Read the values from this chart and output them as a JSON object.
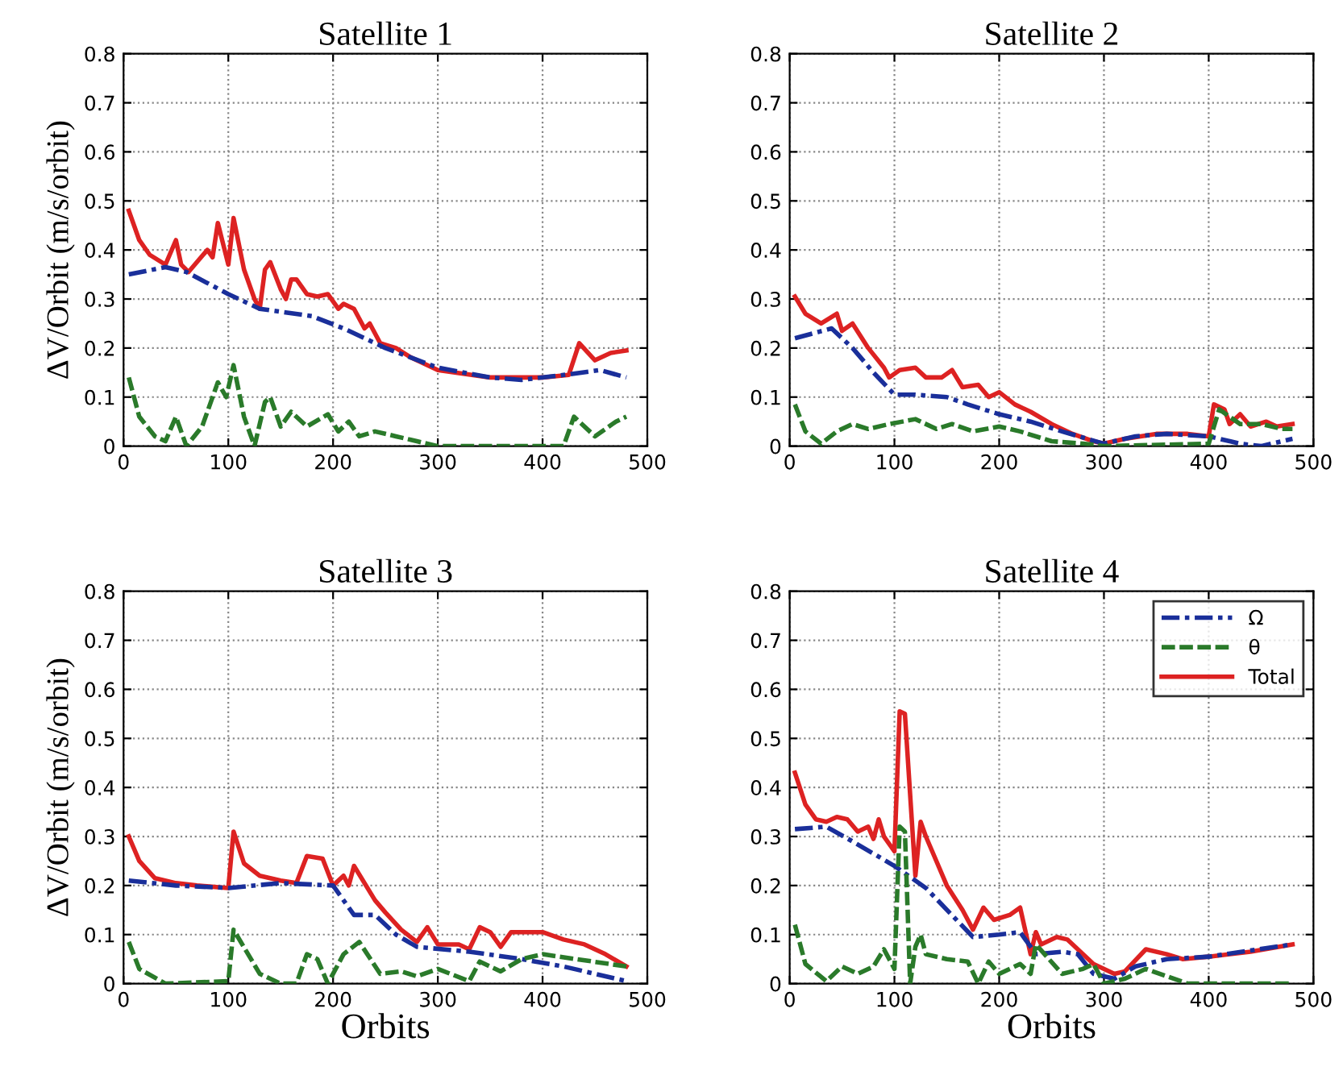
{
  "chart_data": [
    {
      "type": "line",
      "title": "Satellite 1",
      "ylabel": "ΔV/Orbit (m/s/orbit)",
      "xlim": [
        0,
        500
      ],
      "xticks": [
        0,
        100,
        200,
        300,
        400,
        500
      ],
      "ylim": [
        0,
        0.8
      ],
      "yticks": [
        0,
        0.1,
        0.2,
        0.3,
        0.4,
        0.5,
        0.6,
        0.7,
        0.8
      ],
      "grid": true,
      "legend": false,
      "series": [
        {
          "color": "#1a2f9a",
          "line_style": "dashdot",
          "x": [
            5,
            40,
            60,
            100,
            130,
            180,
            210,
            250,
            300,
            350,
            380,
            420,
            455,
            480
          ],
          "values": [
            0.35,
            0.365,
            0.355,
            0.31,
            0.28,
            0.265,
            0.24,
            0.2,
            0.16,
            0.14,
            0.135,
            0.145,
            0.155,
            0.14
          ]
        },
        {
          "color": "#2a7a2a",
          "line_style": "dashed",
          "x": [
            5,
            15,
            30,
            40,
            50,
            60,
            75,
            90,
            98,
            105,
            115,
            125,
            135,
            140,
            150,
            160,
            175,
            195,
            205,
            215,
            225,
            240,
            260,
            280,
            300,
            350,
            420,
            430,
            450,
            470,
            480
          ],
          "values": [
            0.14,
            0.06,
            0.02,
            0.01,
            0.06,
            0.0,
            0.04,
            0.13,
            0.1,
            0.165,
            0.06,
            0.0,
            0.09,
            0.1,
            0.04,
            0.07,
            0.04,
            0.065,
            0.03,
            0.05,
            0.02,
            0.03,
            0.02,
            0.01,
            0.0,
            0.0,
            0.0,
            0.06,
            0.02,
            0.05,
            0.06
          ]
        },
        {
          "color": "#dd2222",
          "line_style": "solid",
          "x": [
            5,
            15,
            25,
            40,
            50,
            55,
            62,
            80,
            85,
            90,
            100,
            105,
            115,
            125,
            130,
            135,
            140,
            150,
            155,
            160,
            165,
            175,
            185,
            195,
            205,
            210,
            220,
            230,
            235,
            245,
            260,
            275,
            300,
            350,
            400,
            425,
            435,
            450,
            465,
            480
          ],
          "values": [
            0.48,
            0.42,
            0.39,
            0.37,
            0.42,
            0.37,
            0.355,
            0.4,
            0.385,
            0.455,
            0.37,
            0.465,
            0.36,
            0.3,
            0.28,
            0.36,
            0.375,
            0.32,
            0.3,
            0.34,
            0.34,
            0.31,
            0.305,
            0.31,
            0.28,
            0.29,
            0.28,
            0.24,
            0.25,
            0.21,
            0.2,
            0.18,
            0.155,
            0.14,
            0.14,
            0.145,
            0.21,
            0.175,
            0.19,
            0.195
          ]
        }
      ]
    },
    {
      "type": "line",
      "title": "Satellite 2",
      "xlim": [
        0,
        500
      ],
      "xticks": [
        0,
        100,
        200,
        300,
        400,
        500
      ],
      "ylim": [
        0,
        0.8
      ],
      "yticks": [
        0,
        0.1,
        0.2,
        0.3,
        0.4,
        0.5,
        0.6,
        0.7,
        0.8
      ],
      "grid": true,
      "legend": false,
      "series": [
        {
          "color": "#1a2f9a",
          "line_style": "dashdot",
          "x": [
            5,
            40,
            60,
            80,
            100,
            120,
            150,
            170,
            200,
            230,
            260,
            300,
            330,
            360,
            400,
            430,
            450,
            480
          ],
          "values": [
            0.22,
            0.24,
            0.2,
            0.15,
            0.105,
            0.105,
            0.1,
            0.085,
            0.065,
            0.05,
            0.03,
            0.005,
            0.02,
            0.025,
            0.02,
            0.005,
            0.0,
            0.015
          ]
        },
        {
          "color": "#2a7a2a",
          "line_style": "dashed",
          "x": [
            5,
            15,
            30,
            45,
            60,
            75,
            95,
            120,
            140,
            155,
            175,
            200,
            220,
            250,
            280,
            300,
            400,
            410,
            420,
            430,
            450,
            470,
            480
          ],
          "values": [
            0.085,
            0.03,
            0.005,
            0.03,
            0.045,
            0.035,
            0.045,
            0.055,
            0.035,
            0.045,
            0.03,
            0.04,
            0.03,
            0.01,
            0.005,
            0.0,
            0.005,
            0.075,
            0.06,
            0.045,
            0.045,
            0.035,
            0.035
          ]
        },
        {
          "color": "#dd2222",
          "line_style": "solid",
          "x": [
            5,
            15,
            30,
            45,
            50,
            60,
            75,
            90,
            95,
            105,
            120,
            130,
            145,
            155,
            165,
            180,
            190,
            200,
            215,
            230,
            250,
            270,
            290,
            300,
            320,
            350,
            380,
            400,
            405,
            415,
            420,
            430,
            440,
            455,
            465,
            480
          ],
          "values": [
            0.305,
            0.27,
            0.25,
            0.27,
            0.235,
            0.25,
            0.2,
            0.16,
            0.14,
            0.155,
            0.16,
            0.14,
            0.14,
            0.155,
            0.12,
            0.125,
            0.1,
            0.11,
            0.085,
            0.07,
            0.045,
            0.025,
            0.01,
            0.005,
            0.015,
            0.025,
            0.025,
            0.02,
            0.085,
            0.075,
            0.045,
            0.065,
            0.04,
            0.05,
            0.04,
            0.045
          ]
        }
      ]
    },
    {
      "type": "line",
      "title": "Satellite 3",
      "xlabel": "Orbits",
      "ylabel": "ΔV/Orbit (m/s/orbit)",
      "xlim": [
        0,
        500
      ],
      "xticks": [
        0,
        100,
        200,
        300,
        400,
        500
      ],
      "ylim": [
        0,
        0.8
      ],
      "yticks": [
        0,
        0.1,
        0.2,
        0.3,
        0.4,
        0.5,
        0.6,
        0.7,
        0.8
      ],
      "grid": true,
      "legend": false,
      "series": [
        {
          "color": "#1a2f9a",
          "line_style": "dashdot",
          "x": [
            5,
            50,
            100,
            150,
            200,
            220,
            240,
            260,
            280,
            330,
            380,
            420,
            480
          ],
          "values": [
            0.21,
            0.2,
            0.195,
            0.205,
            0.2,
            0.14,
            0.14,
            0.1,
            0.075,
            0.065,
            0.05,
            0.035,
            0.005
          ]
        },
        {
          "color": "#2a7a2a",
          "line_style": "dashed",
          "x": [
            5,
            15,
            40,
            100,
            105,
            130,
            150,
            165,
            175,
            185,
            195,
            210,
            225,
            245,
            265,
            280,
            300,
            330,
            340,
            360,
            380,
            400,
            480
          ],
          "values": [
            0.085,
            0.03,
            0.0,
            0.005,
            0.11,
            0.02,
            0.0,
            0.0,
            0.06,
            0.05,
            0.0,
            0.06,
            0.085,
            0.02,
            0.025,
            0.015,
            0.03,
            0.005,
            0.045,
            0.025,
            0.05,
            0.06,
            0.035
          ]
        },
        {
          "color": "#dd2222",
          "line_style": "solid",
          "x": [
            5,
            15,
            30,
            50,
            70,
            100,
            105,
            115,
            130,
            150,
            165,
            175,
            190,
            200,
            210,
            215,
            220,
            240,
            250,
            265,
            280,
            290,
            300,
            320,
            330,
            340,
            350,
            360,
            370,
            400,
            420,
            440,
            460,
            480
          ],
          "values": [
            0.3,
            0.25,
            0.215,
            0.205,
            0.2,
            0.195,
            0.31,
            0.245,
            0.22,
            0.21,
            0.205,
            0.26,
            0.255,
            0.2,
            0.22,
            0.2,
            0.24,
            0.17,
            0.145,
            0.11,
            0.085,
            0.115,
            0.08,
            0.08,
            0.07,
            0.115,
            0.105,
            0.075,
            0.105,
            0.105,
            0.09,
            0.08,
            0.06,
            0.035
          ]
        }
      ]
    },
    {
      "type": "line",
      "title": "Satellite 4",
      "xlabel": "Orbits",
      "xlim": [
        0,
        500
      ],
      "xticks": [
        0,
        100,
        200,
        300,
        400,
        500
      ],
      "ylim": [
        0,
        0.8
      ],
      "yticks": [
        0,
        0.1,
        0.2,
        0.3,
        0.4,
        0.5,
        0.6,
        0.7,
        0.8
      ],
      "grid": true,
      "legend": "top right",
      "series": [
        {
          "name": "Ω",
          "color": "#1a2f9a",
          "line_style": "dashdot",
          "x": [
            5,
            35,
            60,
            100,
            130,
            175,
            200,
            220,
            235,
            260,
            275,
            290,
            310,
            330,
            360,
            400,
            480
          ],
          "values": [
            0.315,
            0.32,
            0.29,
            0.24,
            0.195,
            0.095,
            0.1,
            0.105,
            0.06,
            0.065,
            0.06,
            0.02,
            0.01,
            0.035,
            0.05,
            0.055,
            0.08
          ]
        },
        {
          "name": "θ",
          "color": "#2a7a2a",
          "line_style": "dashed",
          "x": [
            5,
            15,
            35,
            50,
            65,
            80,
            90,
            100,
            105,
            110,
            115,
            120,
            125,
            130,
            150,
            170,
            180,
            190,
            200,
            220,
            230,
            235,
            260,
            280,
            290,
            300,
            320,
            340,
            360,
            380,
            480
          ],
          "values": [
            0.12,
            0.04,
            0.005,
            0.035,
            0.02,
            0.035,
            0.07,
            0.03,
            0.32,
            0.31,
            0.0,
            0.075,
            0.1,
            0.06,
            0.05,
            0.045,
            0.0,
            0.045,
            0.02,
            0.04,
            0.02,
            0.08,
            0.02,
            0.03,
            0.04,
            0.0,
            0.01,
            0.03,
            0.015,
            0.0,
            0.0
          ]
        },
        {
          "name": "Total",
          "color": "#dd2222",
          "line_style": "solid",
          "x": [
            5,
            15,
            25,
            35,
            45,
            55,
            65,
            75,
            80,
            85,
            90,
            100,
            105,
            110,
            120,
            125,
            130,
            150,
            165,
            175,
            185,
            195,
            210,
            220,
            230,
            235,
            240,
            255,
            265,
            290,
            310,
            320,
            340,
            360,
            375,
            400,
            440,
            480
          ],
          "values": [
            0.43,
            0.365,
            0.335,
            0.33,
            0.34,
            0.335,
            0.31,
            0.32,
            0.295,
            0.335,
            0.3,
            0.27,
            0.555,
            0.55,
            0.22,
            0.33,
            0.3,
            0.2,
            0.15,
            0.11,
            0.155,
            0.13,
            0.14,
            0.155,
            0.06,
            0.105,
            0.08,
            0.095,
            0.09,
            0.04,
            0.02,
            0.025,
            0.07,
            0.06,
            0.05,
            0.055,
            0.065,
            0.08
          ]
        }
      ]
    }
  ]
}
